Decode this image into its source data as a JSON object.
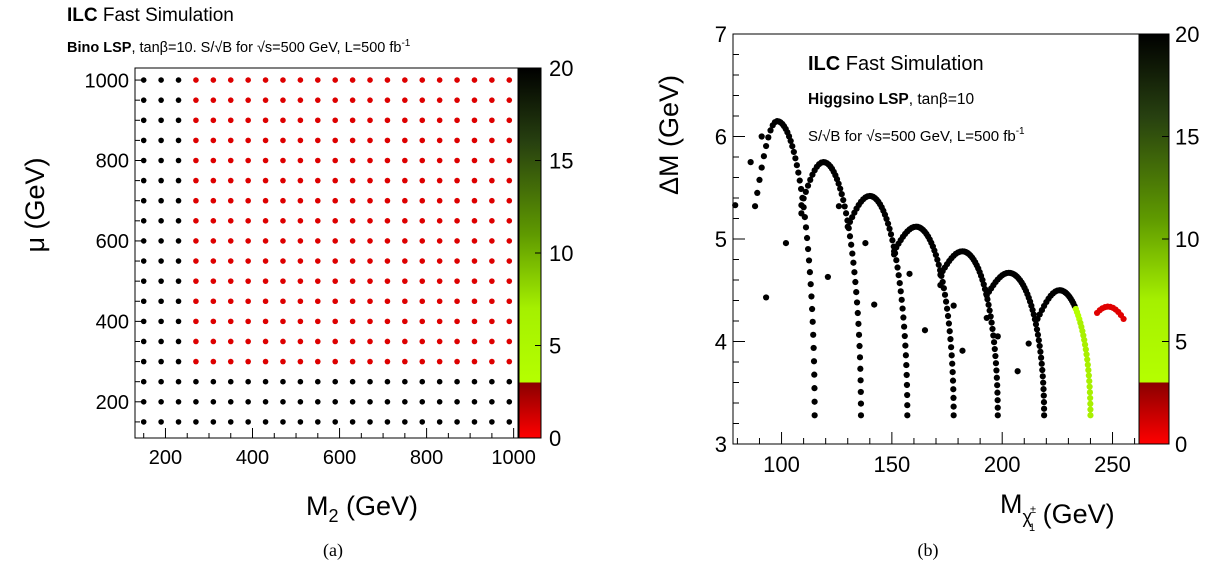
{
  "panels": {
    "a": {
      "header_bold": "ILC",
      "header_rest": " Fast Simulation",
      "subtitle_bold": "Bino LSP",
      "subtitle_rest": ", tanβ=10.   S/√B for  √s=500 GeV, L=500 fb",
      "subtitle_sup": "-1",
      "ylabel": "μ (GeV)",
      "xlabel_main": "M",
      "xlabel_sub": "2",
      "xlabel_unit": " (GeV)",
      "caption": "(a)"
    },
    "b": {
      "header_bold": "ILC",
      "header_rest": " Fast Simulation",
      "subtitle_bold": "Higgsino LSP",
      "subtitle_rest": ", tanβ=10",
      "line3": "S/√B for  √s=500 GeV, L=500 fb",
      "line3_sup": "-1",
      "ylabel": "ΔM (GeV)",
      "xlabel_main": "M",
      "xlabel_sub": "χ",
      "xlabel_subsup": "±",
      "xlabel_subsub": "1",
      "xlabel_unit": " (GeV)",
      "caption": "(b)"
    }
  },
  "chart_data": [
    {
      "type": "scatter",
      "title": "Bino LSP, tanβ=10. S/√B for √s=500 GeV, L=500 fb-1",
      "xlabel": "M2 (GeV)",
      "ylabel": "μ (GeV)",
      "xlim": [
        130,
        1010
      ],
      "ylim": [
        110,
        1030
      ],
      "xticks": [
        200,
        400,
        600,
        800,
        1000
      ],
      "yticks": [
        200,
        400,
        600,
        800,
        1000
      ],
      "grid": {
        "x_start": 150,
        "x_step": 40,
        "x_count": 22,
        "y_start": 150,
        "y_step": 50,
        "y_count": 18
      },
      "colored_region": {
        "description": "points with M2 >= 270 GeV and 300 <= mu <= 1000 GeV have S/√B in 0–3 range (red); all other points black (≥20)",
        "x_min": 270,
        "y_min": 300,
        "y_max": 1000
      },
      "colorbar": {
        "min": 0,
        "max": 20,
        "ticks": [
          0,
          5,
          10,
          15,
          20
        ]
      }
    },
    {
      "type": "scatter",
      "title": "Higgsino LSP, tanβ=10. S/√B for √s=500 GeV, L=500 fb-1",
      "xlabel": "Mχ1± (GeV)",
      "ylabel": "ΔM (GeV)",
      "xlim": [
        78,
        262
      ],
      "ylim": [
        3,
        7
      ],
      "xticks": [
        100,
        150,
        200,
        250
      ],
      "yticks": [
        3,
        4,
        5,
        6,
        7
      ],
      "series": [
        {
          "peak_x": 98,
          "peak_y": 6.15,
          "bottom_x": 115,
          "left_y": 5.32
        },
        {
          "peak_x": 119,
          "peak_y": 5.75,
          "bottom_x": 136,
          "left_y": 5.33
        },
        {
          "peak_x": 140,
          "peak_y": 5.42,
          "bottom_x": 157,
          "left_y": 5.12
        },
        {
          "peak_x": 161,
          "peak_y": 5.12,
          "bottom_x": 178,
          "left_y": 4.88
        },
        {
          "peak_x": 182,
          "peak_y": 4.88,
          "bottom_x": 198,
          "left_y": 4.65
        },
        {
          "peak_x": 203,
          "peak_y": 4.67,
          "bottom_x": 219,
          "left_y": 4.45
        },
        {
          "peak_x": 226,
          "peak_y": 4.5,
          "bottom_x": 240,
          "left_y": 4.22
        }
      ],
      "red_arc": {
        "start_x": 243,
        "peak_x": 248,
        "peak_y": 4.34,
        "end_x": 255,
        "end_y": 4.22
      },
      "scattered_points": [
        [
          79,
          5.33
        ],
        [
          86,
          5.75
        ],
        [
          91,
          6.0
        ],
        [
          93,
          4.43
        ],
        [
          102,
          4.96
        ],
        [
          109,
          5.25
        ],
        [
          121,
          4.63
        ],
        [
          126,
          5.32
        ],
        [
          138,
          4.96
        ],
        [
          142,
          4.36
        ],
        [
          151,
          4.85
        ],
        [
          158,
          4.66
        ],
        [
          165,
          4.11
        ],
        [
          172,
          4.55
        ],
        [
          178,
          4.35
        ],
        [
          182,
          3.91
        ],
        [
          193,
          4.23
        ],
        [
          198,
          4.05
        ],
        [
          207,
          3.71
        ],
        [
          212,
          3.98
        ]
      ],
      "colorbar": {
        "min": 0,
        "max": 20,
        "ticks": [
          0,
          5,
          10,
          15,
          20
        ]
      }
    }
  ]
}
